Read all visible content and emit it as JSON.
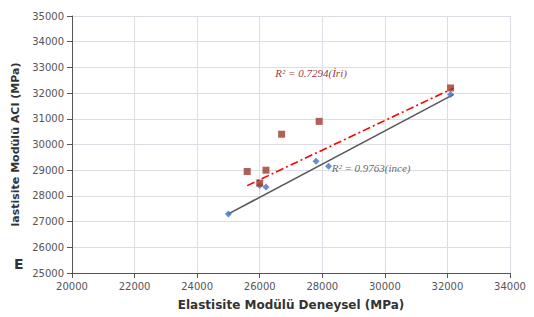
{
  "chart_data": {
    "type": "scatter",
    "xlabel": "Elastisite Modülü Deneysel (MPa)",
    "ylabel": "lastisite Modülü ACI (MPa)",
    "xlim": [
      20000,
      34000
    ],
    "ylim": [
      25000,
      35000
    ],
    "xticks": [
      20000,
      22000,
      24000,
      26000,
      28000,
      30000,
      32000,
      34000
    ],
    "yticks": [
      25000,
      26000,
      27000,
      28000,
      29000,
      30000,
      31000,
      32000,
      33000,
      34000,
      35000
    ],
    "grid": true,
    "series": [
      {
        "type": "line",
        "color": "#595959",
        "line_style": "solid",
        "x": [
          25000,
          32200
        ],
        "values": [
          27300,
          31950
        ]
      },
      {
        "type": "line",
        "color": "#FF0000",
        "line_style": "dashdot",
        "x": [
          25600,
          32200
        ],
        "values": [
          28400,
          32200
        ]
      },
      {
        "type": "scatter",
        "color": "#4472C4",
        "marker": "diamond",
        "x": [
          25000,
          26000,
          26200,
          27800,
          28200,
          32100
        ],
        "values": [
          27300,
          28400,
          28350,
          29350,
          29150,
          31950
        ]
      },
      {
        "type": "scatter",
        "color": "#9C3A2E",
        "marker": "square",
        "x": [
          25600,
          26000,
          26200,
          26700,
          27900,
          32100
        ],
        "values": [
          28950,
          28500,
          29000,
          30400,
          30900,
          32200
        ]
      }
    ],
    "annotations": [
      {
        "text": "R² = 0.7294(İri)",
        "x": 26500,
        "y": 32800,
        "color": "#7F0000"
      },
      {
        "text": "R² = 0.9763(ince)",
        "x": 28300,
        "y": 29100,
        "color": "#404040"
      },
      {
        "text": "E"
      }
    ]
  }
}
